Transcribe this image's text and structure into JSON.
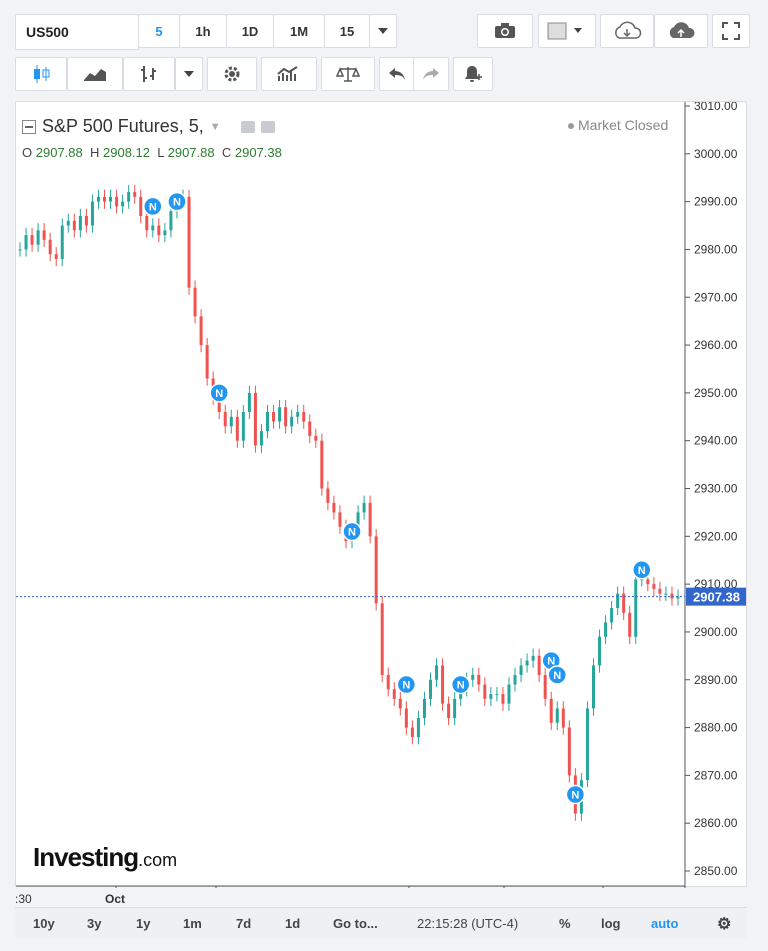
{
  "toolbar": {
    "symbol": "US500",
    "interval_buttons": [
      "5",
      "1h",
      "1D",
      "1M",
      "15"
    ],
    "active_interval": "5"
  },
  "chart_header": {
    "title": "S&P 500 Futures, 5,",
    "status": "Market Closed",
    "ohlc": {
      "o_label": "O",
      "o": "2907.88",
      "h_label": "H",
      "h": "2908.12",
      "l_label": "L",
      "l": "2907.88",
      "c_label": "C",
      "c": "2907.38"
    }
  },
  "watermark": {
    "brand": "Investing",
    "suffix": ".com"
  },
  "bottom_bar": {
    "ranges": [
      "10y",
      "3y",
      "1y",
      "1m",
      "7d",
      "1d"
    ],
    "goto": "Go to...",
    "clock": "22:15:28 (UTC-4)",
    "percent": "%",
    "log": "log",
    "auto": "auto"
  },
  "colors": {
    "up": "#26a69a",
    "down": "#ef5350",
    "accent": "#2196f3",
    "price_line": "#3366cc"
  },
  "chart_data": {
    "type": "candlestick",
    "title": "S&P 500 Futures, 5,",
    "y_ticks": [
      "3010.00",
      "3000.00",
      "2990.00",
      "2980.00",
      "2970.00",
      "2960.00",
      "2950.00",
      "2940.00",
      "2930.00",
      "2920.00",
      "2910.00",
      "2900.00",
      "2890.00",
      "2880.00",
      "2870.00",
      "2860.00",
      "2850.00"
    ],
    "ylim": [
      2847,
      3012
    ],
    "x_tick_labels": [
      ":30",
      "Oct"
    ],
    "current_price": 2907.38,
    "price_label": "2907.38",
    "series": [
      {
        "name": "price",
        "values": [
          2980,
          2983,
          2981,
          2984,
          2982,
          2979,
          2978,
          2985,
          2986,
          2984,
          2987,
          2985,
          2990,
          2991,
          2990,
          2991,
          2989,
          2990,
          2992,
          2991,
          2987,
          2984,
          2985,
          2983,
          2984,
          2988,
          2990,
          2991,
          2972,
          2966,
          2960,
          2953,
          2949,
          2946,
          2943,
          2945,
          2940,
          2946,
          2950,
          2939,
          2942,
          2946,
          2944,
          2947,
          2943,
          2945,
          2946,
          2944,
          2941,
          2940,
          2930,
          2927,
          2925,
          2922,
          2919,
          2921,
          2925,
          2927,
          2920,
          2906,
          2891,
          2888,
          2886,
          2884,
          2880,
          2878,
          2882,
          2886,
          2890,
          2893,
          2885,
          2882,
          2886,
          2888,
          2890,
          2891,
          2889,
          2886,
          2887,
          2887,
          2885,
          2889,
          2891,
          2893,
          2894,
          2895,
          2891,
          2886,
          2881,
          2884,
          2880,
          2870,
          2862,
          2869,
          2884,
          2893,
          2899,
          2902,
          2905,
          2908,
          2904,
          2899,
          2911,
          2911,
          2910,
          2909,
          2908,
          2908,
          2907,
          2907.38
        ]
      }
    ],
    "news_markers": [
      2989,
      2990,
      2950,
      2921,
      2889,
      2889,
      2894,
      2891,
      2866,
      2913
    ]
  }
}
